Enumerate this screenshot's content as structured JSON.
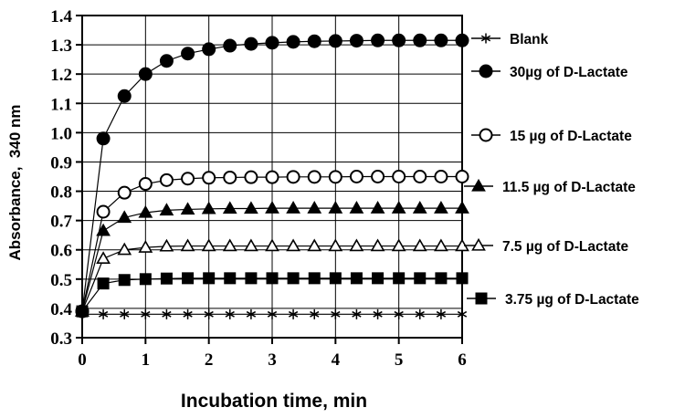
{
  "chart_data": {
    "type": "line",
    "xlabel": "Incubation time, min",
    "ylabel": "Absorbance,  340 nm",
    "xlim": [
      0,
      6
    ],
    "ylim": [
      0.3,
      1.4
    ],
    "x_ticks": [
      "0",
      "1",
      "2",
      "3",
      "4",
      "5",
      "6"
    ],
    "y_ticks": [
      "0.3",
      "0.4",
      "0.5",
      "0.6",
      "0.7",
      "0.8",
      "0.9",
      "1.0",
      "1.1",
      "1.2",
      "1.3",
      "1.4"
    ],
    "grid": true,
    "legend_placement": "right",
    "x": [
      0,
      0.333,
      0.667,
      1,
      1.333,
      1.667,
      2,
      2.333,
      2.667,
      3,
      3.333,
      3.667,
      4,
      4.333,
      4.667,
      5,
      5.333,
      5.667,
      6
    ],
    "series": [
      {
        "name": "Blank",
        "marker": "asterisk",
        "values": [
          0.38,
          0.38,
          0.38,
          0.38,
          0.38,
          0.38,
          0.38,
          0.38,
          0.38,
          0.38,
          0.38,
          0.38,
          0.38,
          0.38,
          0.38,
          0.38,
          0.38,
          0.38,
          0.38
        ]
      },
      {
        "name": "30µg of D-Lactate",
        "marker": "filled-circle",
        "values": [
          0.39,
          0.98,
          1.125,
          1.2,
          1.245,
          1.27,
          1.285,
          1.297,
          1.303,
          1.307,
          1.31,
          1.312,
          1.313,
          1.314,
          1.315,
          1.315,
          1.315,
          1.315,
          1.315
        ]
      },
      {
        "name": "15 µg of D-Lactate",
        "marker": "open-circle",
        "values": [
          0.39,
          0.73,
          0.795,
          0.825,
          0.838,
          0.843,
          0.846,
          0.847,
          0.848,
          0.848,
          0.849,
          0.849,
          0.849,
          0.85,
          0.85,
          0.85,
          0.85,
          0.85,
          0.85
        ]
      },
      {
        "name": "11.5 µg of D-Lactate",
        "marker": "filled-triangle",
        "values": [
          0.39,
          0.665,
          0.71,
          0.727,
          0.735,
          0.738,
          0.74,
          0.741,
          0.741,
          0.742,
          0.742,
          0.742,
          0.742,
          0.742,
          0.742,
          0.742,
          0.742,
          0.742,
          0.742
        ]
      },
      {
        "name": "7.5 µg of D-Lactate",
        "marker": "open-triangle",
        "values": [
          0.39,
          0.57,
          0.6,
          0.608,
          0.612,
          0.613,
          0.613,
          0.613,
          0.613,
          0.613,
          0.613,
          0.613,
          0.613,
          0.613,
          0.613,
          0.613,
          0.613,
          0.613,
          0.613
        ]
      },
      {
        "name": "3.75 µg of D-Lactate",
        "marker": "filled-square",
        "values": [
          0.39,
          0.485,
          0.497,
          0.5,
          0.502,
          0.503,
          0.503,
          0.503,
          0.503,
          0.503,
          0.503,
          0.503,
          0.503,
          0.503,
          0.503,
          0.503,
          0.503,
          0.503,
          0.503
        ]
      }
    ]
  }
}
